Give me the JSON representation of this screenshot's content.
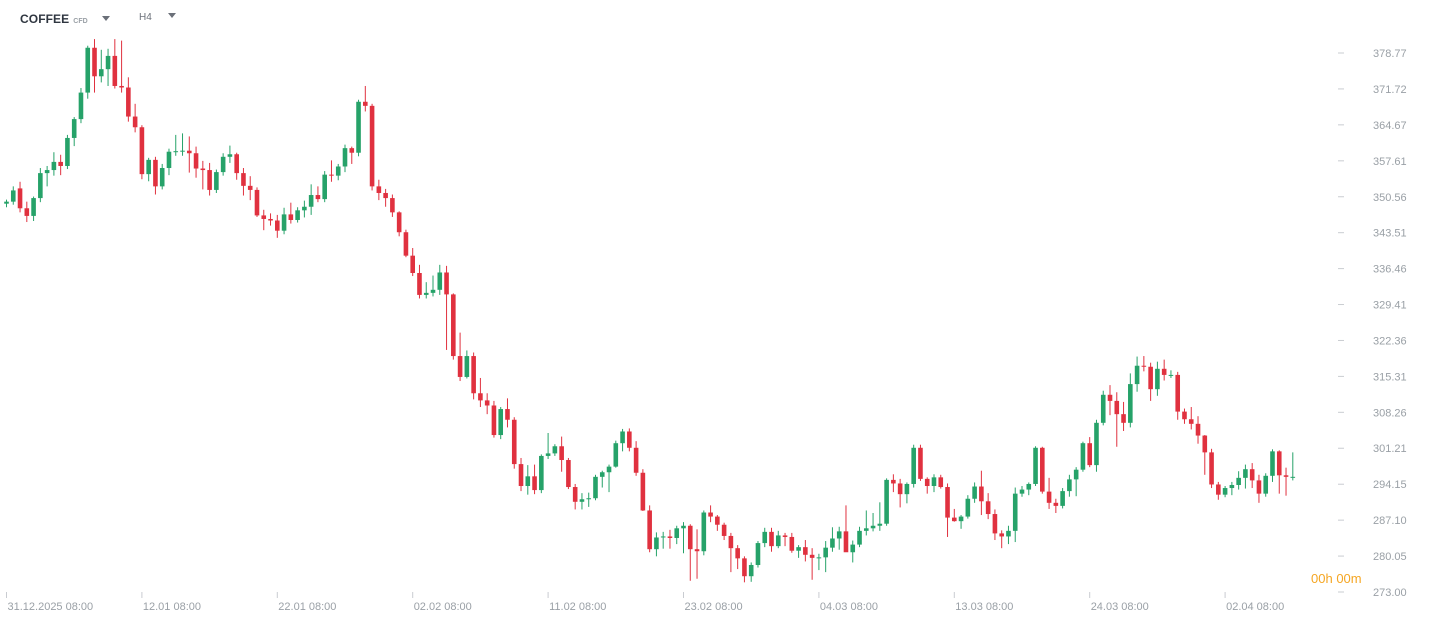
{
  "toolbar": {
    "symbol": "COFFEE",
    "symbol_type": "CFD",
    "timeframe": "H4"
  },
  "timer": {
    "hours": "00",
    "h": "h",
    "minutes": "00",
    "m": "m"
  },
  "colors": {
    "up": "#26a269",
    "down": "#e0313f",
    "axis_text": "#9aa0a6",
    "timer": "#f5a623"
  },
  "chart_data": {
    "type": "candlestick",
    "title": "",
    "xlabel": "",
    "ylabel": "",
    "ylim": [
      273.0,
      382.0
    ],
    "y_ticks": [
      "378.77",
      "371.72",
      "364.67",
      "357.61",
      "350.56",
      "343.51",
      "336.46",
      "329.41",
      "322.36",
      "315.31",
      "308.26",
      "301.21",
      "294.15",
      "287.10",
      "280.05",
      "273.00"
    ],
    "x_ticks": [
      {
        "label": "31.12.2025 08:00",
        "index": 0
      },
      {
        "label": "12.01 08:00",
        "index": 20
      },
      {
        "label": "22.01 08:00",
        "index": 40
      },
      {
        "label": "02.02 08:00",
        "index": 60
      },
      {
        "label": "11.02 08:00",
        "index": 80
      },
      {
        "label": "23.02 08:00",
        "index": 100
      },
      {
        "label": "04.03 08:00",
        "index": 120
      },
      {
        "label": "13.03 08:00",
        "index": 140
      },
      {
        "label": "24.03 08:00",
        "index": 160
      },
      {
        "label": "02.04 08:00",
        "index": 180
      }
    ],
    "candles": [
      [
        349.2,
        350.0,
        348.5,
        349.6
      ],
      [
        349.6,
        352.6,
        349.0,
        351.8
      ],
      [
        352.2,
        353.5,
        347.5,
        348.3
      ],
      [
        348.3,
        349.6,
        345.6,
        346.8
      ],
      [
        346.8,
        350.6,
        345.8,
        350.3
      ],
      [
        350.3,
        356.2,
        349.5,
        355.2
      ],
      [
        355.2,
        356.6,
        352.6,
        355.8
      ],
      [
        355.8,
        359.3,
        354.7,
        357.4
      ],
      [
        357.4,
        358.8,
        354.8,
        356.6
      ],
      [
        356.6,
        362.7,
        356.0,
        362.1
      ],
      [
        362.1,
        366.2,
        360.5,
        365.8
      ],
      [
        365.8,
        371.9,
        365.0,
        371.0
      ],
      [
        371.0,
        380.2,
        369.8,
        379.8
      ],
      [
        379.8,
        381.5,
        371.0,
        374.2
      ],
      [
        374.2,
        379.4,
        373.0,
        375.6
      ],
      [
        375.6,
        379.6,
        372.3,
        378.2
      ],
      [
        378.2,
        381.5,
        371.8,
        372.3
      ],
      [
        372.3,
        381.2,
        371.0,
        372.0
      ],
      [
        372.0,
        374.0,
        365.3,
        366.3
      ],
      [
        366.3,
        368.8,
        363.2,
        364.2
      ],
      [
        364.2,
        364.6,
        354.0,
        355.0
      ],
      [
        355.0,
        358.2,
        353.6,
        357.8
      ],
      [
        357.8,
        358.4,
        351.0,
        352.6
      ],
      [
        352.6,
        357.0,
        352.0,
        356.2
      ],
      [
        356.2,
        360.0,
        354.8,
        359.4
      ],
      [
        359.4,
        362.7,
        358.6,
        359.5
      ],
      [
        359.5,
        363.0,
        358.6,
        359.6
      ],
      [
        359.6,
        362.4,
        355.3,
        359.1
      ],
      [
        359.1,
        360.4,
        354.3,
        356.1
      ],
      [
        356.1,
        357.6,
        352.0,
        355.8
      ],
      [
        355.8,
        357.2,
        350.8,
        351.9
      ],
      [
        351.9,
        355.9,
        351.3,
        355.4
      ],
      [
        355.4,
        359.1,
        354.7,
        358.4
      ],
      [
        358.4,
        360.6,
        357.2,
        358.9
      ],
      [
        358.9,
        359.2,
        353.9,
        355.2
      ],
      [
        355.2,
        356.2,
        350.8,
        352.7
      ],
      [
        352.7,
        354.6,
        349.9,
        351.9
      ],
      [
        351.9,
        352.4,
        346.6,
        346.9
      ],
      [
        346.9,
        348.0,
        344.0,
        346.2
      ],
      [
        346.2,
        347.3,
        344.9,
        345.9
      ],
      [
        345.9,
        347.0,
        342.5,
        343.9
      ],
      [
        343.9,
        348.4,
        343.2,
        347.1
      ],
      [
        347.1,
        349.4,
        345.3,
        346.0
      ],
      [
        346.0,
        348.5,
        345.5,
        347.9
      ],
      [
        347.9,
        349.8,
        346.5,
        348.6
      ],
      [
        348.6,
        353.0,
        347.0,
        350.9
      ],
      [
        350.9,
        352.6,
        349.5,
        350.1
      ],
      [
        350.1,
        355.6,
        349.5,
        354.9
      ],
      [
        354.9,
        357.7,
        353.5,
        354.7
      ],
      [
        354.7,
        357.0,
        353.8,
        356.5
      ],
      [
        356.5,
        360.8,
        355.4,
        360.1
      ],
      [
        360.1,
        360.4,
        357.0,
        359.2
      ],
      [
        359.2,
        369.6,
        358.5,
        369.2
      ],
      [
        369.2,
        372.3,
        367.3,
        368.4
      ],
      [
        368.4,
        368.8,
        351.8,
        352.6
      ],
      [
        352.6,
        353.9,
        349.9,
        351.3
      ],
      [
        351.3,
        352.1,
        348.6,
        350.3
      ],
      [
        350.3,
        351.0,
        346.6,
        347.5
      ],
      [
        347.5,
        347.7,
        342.8,
        343.6
      ],
      [
        343.6,
        344.1,
        338.7,
        339.0
      ],
      [
        339.0,
        340.5,
        335.0,
        335.6
      ],
      [
        335.6,
        337.2,
        330.6,
        331.3
      ],
      [
        331.3,
        333.8,
        330.6,
        331.7
      ],
      [
        331.7,
        335.1,
        331.0,
        332.3
      ],
      [
        332.3,
        337.2,
        331.3,
        335.7
      ],
      [
        335.7,
        337.0,
        320.5,
        331.4
      ],
      [
        331.4,
        331.6,
        318.6,
        319.3
      ],
      [
        319.3,
        323.9,
        314.4,
        315.2
      ],
      [
        315.2,
        320.4,
        314.9,
        319.3
      ],
      [
        319.3,
        320.0,
        310.8,
        312.0
      ],
      [
        312.0,
        315.0,
        309.3,
        310.6
      ],
      [
        310.6,
        312.0,
        307.9,
        309.6
      ],
      [
        309.6,
        310.5,
        303.3,
        303.8
      ],
      [
        303.8,
        309.3,
        303.0,
        308.9
      ],
      [
        308.9,
        311.0,
        305.3,
        306.8
      ],
      [
        306.8,
        307.3,
        297.2,
        298.1
      ],
      [
        298.1,
        299.3,
        292.8,
        293.8
      ],
      [
        293.8,
        297.9,
        292.1,
        295.7
      ],
      [
        295.7,
        298.0,
        292.2,
        293.0
      ],
      [
        293.0,
        300.0,
        292.4,
        299.7
      ],
      [
        299.7,
        304.2,
        299.1,
        300.2
      ],
      [
        300.2,
        302.0,
        299.7,
        301.6
      ],
      [
        301.6,
        303.5,
        296.6,
        298.9
      ],
      [
        298.9,
        299.3,
        293.2,
        293.6
      ],
      [
        293.6,
        294.2,
        289.2,
        290.7
      ],
      [
        290.7,
        292.4,
        289.2,
        291.2
      ],
      [
        291.2,
        292.5,
        289.7,
        291.4
      ],
      [
        291.4,
        296.0,
        291.0,
        295.6
      ],
      [
        295.6,
        296.8,
        293.5,
        296.5
      ],
      [
        296.5,
        298.0,
        292.6,
        297.6
      ],
      [
        297.6,
        302.7,
        297.4,
        302.2
      ],
      [
        302.2,
        305.0,
        300.6,
        304.5
      ],
      [
        304.5,
        305.1,
        300.6,
        301.3
      ],
      [
        301.3,
        302.6,
        295.8,
        296.4
      ],
      [
        296.4,
        297.1,
        288.9,
        289.0
      ],
      [
        289.0,
        290.0,
        280.8,
        281.4
      ],
      [
        281.4,
        284.7,
        280.0,
        283.7
      ],
      [
        283.7,
        284.8,
        281.5,
        283.9
      ],
      [
        283.9,
        285.2,
        281.5,
        283.6
      ],
      [
        283.6,
        286.0,
        282.4,
        285.5
      ],
      [
        285.5,
        286.7,
        280.6,
        286.0
      ],
      [
        286.0,
        286.3,
        275.2,
        281.4
      ],
      [
        281.4,
        285.3,
        275.6,
        281.0
      ],
      [
        281.0,
        289.0,
        280.2,
        288.6
      ],
      [
        288.6,
        290.0,
        286.7,
        287.8
      ],
      [
        287.8,
        288.1,
        285.0,
        286.2
      ],
      [
        286.2,
        286.6,
        283.2,
        284.0
      ],
      [
        284.0,
        284.6,
        276.9,
        281.6
      ],
      [
        281.6,
        282.2,
        277.5,
        279.6
      ],
      [
        279.6,
        280.0,
        274.9,
        276.1
      ],
      [
        276.1,
        278.8,
        275.0,
        278.3
      ],
      [
        278.3,
        283.0,
        277.8,
        282.6
      ],
      [
        282.6,
        285.6,
        281.8,
        284.8
      ],
      [
        284.8,
        285.6,
        280.9,
        282.0
      ],
      [
        282.0,
        285.0,
        281.6,
        284.1
      ],
      [
        284.1,
        284.6,
        282.0,
        283.8
      ],
      [
        283.8,
        284.6,
        280.7,
        281.1
      ],
      [
        281.1,
        282.2,
        279.7,
        281.8
      ],
      [
        281.8,
        283.2,
        279.0,
        280.3
      ],
      [
        280.3,
        281.6,
        275.4,
        279.7
      ],
      [
        279.7,
        280.5,
        277.3,
        279.8
      ],
      [
        279.8,
        283.0,
        276.9,
        281.7
      ],
      [
        281.7,
        285.7,
        280.9,
        283.5
      ],
      [
        283.5,
        285.8,
        281.3,
        284.9
      ],
      [
        284.9,
        290.0,
        281.7,
        280.8
      ],
      [
        280.8,
        283.1,
        278.8,
        282.3
      ],
      [
        282.3,
        285.8,
        281.8,
        285.0
      ],
      [
        285.0,
        289.0,
        284.1,
        285.5
      ],
      [
        285.5,
        288.5,
        284.9,
        286.0
      ],
      [
        286.0,
        290.6,
        285.0,
        286.4
      ],
      [
        286.4,
        295.3,
        286.0,
        295.0
      ],
      [
        295.0,
        296.1,
        292.6,
        294.3
      ],
      [
        294.3,
        295.2,
        289.6,
        292.2
      ],
      [
        292.2,
        294.5,
        290.4,
        294.2
      ],
      [
        294.2,
        301.9,
        293.5,
        301.3
      ],
      [
        301.3,
        301.9,
        294.8,
        295.2
      ],
      [
        295.2,
        295.5,
        292.3,
        293.8
      ],
      [
        293.8,
        296.1,
        292.6,
        295.5
      ],
      [
        295.5,
        296.0,
        293.3,
        293.6
      ],
      [
        293.6,
        294.3,
        283.8,
        287.6
      ],
      [
        287.6,
        289.3,
        286.8,
        286.9
      ],
      [
        286.9,
        288.1,
        285.4,
        287.8
      ],
      [
        287.8,
        292.0,
        287.4,
        291.3
      ],
      [
        291.3,
        294.5,
        290.5,
        293.7
      ],
      [
        293.7,
        296.8,
        288.1,
        290.8
      ],
      [
        290.8,
        292.4,
        287.3,
        288.3
      ],
      [
        288.3,
        289.2,
        283.2,
        284.5
      ],
      [
        284.5,
        285.1,
        281.6,
        283.9
      ],
      [
        283.9,
        286.0,
        282.4,
        285.0
      ],
      [
        285.0,
        293.5,
        282.8,
        292.3
      ],
      [
        292.3,
        293.8,
        291.7,
        293.1
      ],
      [
        293.1,
        294.5,
        292.0,
        294.2
      ],
      [
        294.2,
        301.6,
        293.8,
        301.3
      ],
      [
        301.3,
        301.5,
        292.3,
        292.7
      ],
      [
        292.7,
        295.4,
        289.3,
        290.5
      ],
      [
        290.5,
        291.3,
        288.5,
        289.9
      ],
      [
        289.9,
        293.4,
        289.4,
        292.8
      ],
      [
        292.8,
        296.0,
        291.7,
        295.1
      ],
      [
        295.1,
        297.5,
        291.8,
        297.0
      ],
      [
        297.0,
        302.5,
        296.6,
        302.2
      ],
      [
        302.2,
        303.4,
        297.5,
        297.9
      ],
      [
        297.9,
        306.8,
        296.6,
        306.2
      ],
      [
        306.2,
        312.5,
        305.7,
        311.7
      ],
      [
        311.7,
        313.6,
        307.7,
        310.5
      ],
      [
        310.5,
        312.2,
        301.5,
        307.9
      ],
      [
        307.9,
        310.3,
        304.6,
        306.2
      ],
      [
        306.2,
        315.9,
        305.3,
        313.8
      ],
      [
        313.8,
        319.2,
        312.3,
        317.4
      ],
      [
        317.4,
        319.3,
        316.3,
        317.2
      ],
      [
        317.2,
        318.0,
        310.5,
        312.8
      ],
      [
        312.8,
        318.2,
        311.5,
        316.8
      ],
      [
        316.8,
        318.6,
        314.5,
        315.6
      ],
      [
        315.6,
        316.5,
        315.0,
        315.6
      ],
      [
        315.6,
        316.2,
        306.8,
        308.4
      ],
      [
        308.4,
        309.0,
        306.0,
        306.9
      ],
      [
        306.9,
        309.3,
        304.9,
        306.0
      ],
      [
        306.0,
        307.5,
        302.1,
        303.7
      ],
      [
        303.7,
        303.8,
        296.0,
        300.4
      ],
      [
        300.4,
        301.1,
        293.4,
        294.1
      ],
      [
        294.1,
        294.6,
        291.1,
        292.1
      ],
      [
        292.1,
        293.8,
        291.6,
        293.4
      ],
      [
        293.4,
        294.6,
        292.0,
        294.0
      ],
      [
        294.0,
        296.7,
        293.1,
        295.4
      ],
      [
        295.4,
        298.0,
        293.3,
        297.1
      ],
      [
        297.1,
        298.3,
        293.4,
        294.9
      ],
      [
        294.9,
        296.0,
        290.5,
        292.3
      ],
      [
        292.3,
        296.3,
        291.7,
        295.8
      ],
      [
        295.8,
        301.0,
        294.6,
        300.6
      ],
      [
        300.6,
        300.8,
        292.3,
        295.9
      ],
      [
        295.9,
        297.4,
        291.9,
        295.6
      ],
      [
        295.6,
        300.4,
        294.9,
        295.6
      ]
    ]
  }
}
